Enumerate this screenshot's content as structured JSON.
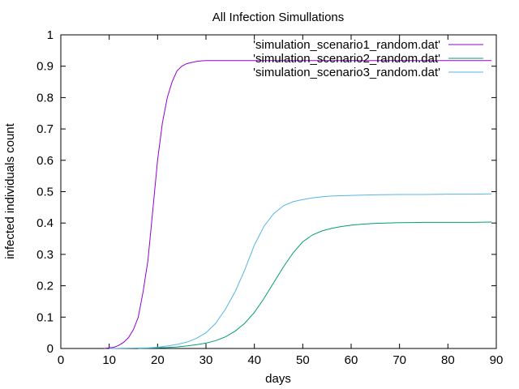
{
  "chart_data": {
    "type": "line",
    "title": "All Infection Simullations",
    "xlabel": "days",
    "ylabel": "infected individuals count",
    "xlim": [
      0,
      90
    ],
    "ylim": [
      0,
      1
    ],
    "xticks": [
      0,
      10,
      20,
      30,
      40,
      50,
      60,
      70,
      80,
      90
    ],
    "yticks": [
      0,
      0.1,
      0.2,
      0.3,
      0.4,
      0.5,
      0.6,
      0.7,
      0.8,
      0.9,
      1
    ],
    "grid": false,
    "legend_position": "top-right",
    "series": [
      {
        "name": "'simulation_scenario1_random.dat'",
        "color": "#9400d3",
        "x": [
          9,
          10,
          11,
          12,
          13,
          14,
          15,
          16,
          17,
          18,
          19,
          20,
          21,
          22,
          23,
          24,
          25,
          26,
          27,
          28,
          29,
          30,
          32,
          34,
          36,
          38,
          40,
          45,
          50,
          55,
          60,
          65,
          70,
          75,
          80,
          85,
          89
        ],
        "y": [
          0,
          0.002,
          0.004,
          0.01,
          0.02,
          0.035,
          0.06,
          0.1,
          0.18,
          0.28,
          0.44,
          0.6,
          0.72,
          0.8,
          0.85,
          0.885,
          0.9,
          0.908,
          0.912,
          0.915,
          0.917,
          0.918,
          0.918,
          0.918,
          0.918,
          0.918,
          0.918,
          0.918,
          0.918,
          0.918,
          0.918,
          0.918,
          0.918,
          0.918,
          0.918,
          0.918,
          0.918
        ]
      },
      {
        "name": "'simulation_scenario2_random.dat'",
        "color": "#009e73",
        "x": [
          16,
          18,
          20,
          22,
          24,
          26,
          28,
          30,
          32,
          34,
          36,
          38,
          40,
          42,
          44,
          46,
          48,
          50,
          52,
          54,
          56,
          58,
          60,
          62,
          65,
          70,
          75,
          80,
          85,
          89
        ],
        "y": [
          0,
          0.001,
          0.002,
          0.003,
          0.005,
          0.008,
          0.012,
          0.017,
          0.025,
          0.037,
          0.055,
          0.08,
          0.115,
          0.16,
          0.21,
          0.26,
          0.305,
          0.34,
          0.362,
          0.375,
          0.383,
          0.389,
          0.393,
          0.396,
          0.399,
          0.401,
          0.402,
          0.402,
          0.402,
          0.403
        ]
      },
      {
        "name": "'simulation_scenario3_random.dat'",
        "color": "#56b4e9",
        "x": [
          10,
          14,
          18,
          20,
          22,
          24,
          26,
          28,
          30,
          32,
          34,
          36,
          38,
          40,
          42,
          44,
          46,
          48,
          50,
          52,
          54,
          56,
          58,
          60,
          65,
          70,
          75,
          80,
          85,
          89
        ],
        "y": [
          0,
          0.001,
          0.002,
          0.004,
          0.008,
          0.013,
          0.02,
          0.032,
          0.05,
          0.08,
          0.125,
          0.18,
          0.25,
          0.33,
          0.39,
          0.43,
          0.455,
          0.468,
          0.475,
          0.48,
          0.484,
          0.486,
          0.487,
          0.488,
          0.49,
          0.491,
          0.491,
          0.492,
          0.492,
          0.493
        ]
      }
    ]
  }
}
